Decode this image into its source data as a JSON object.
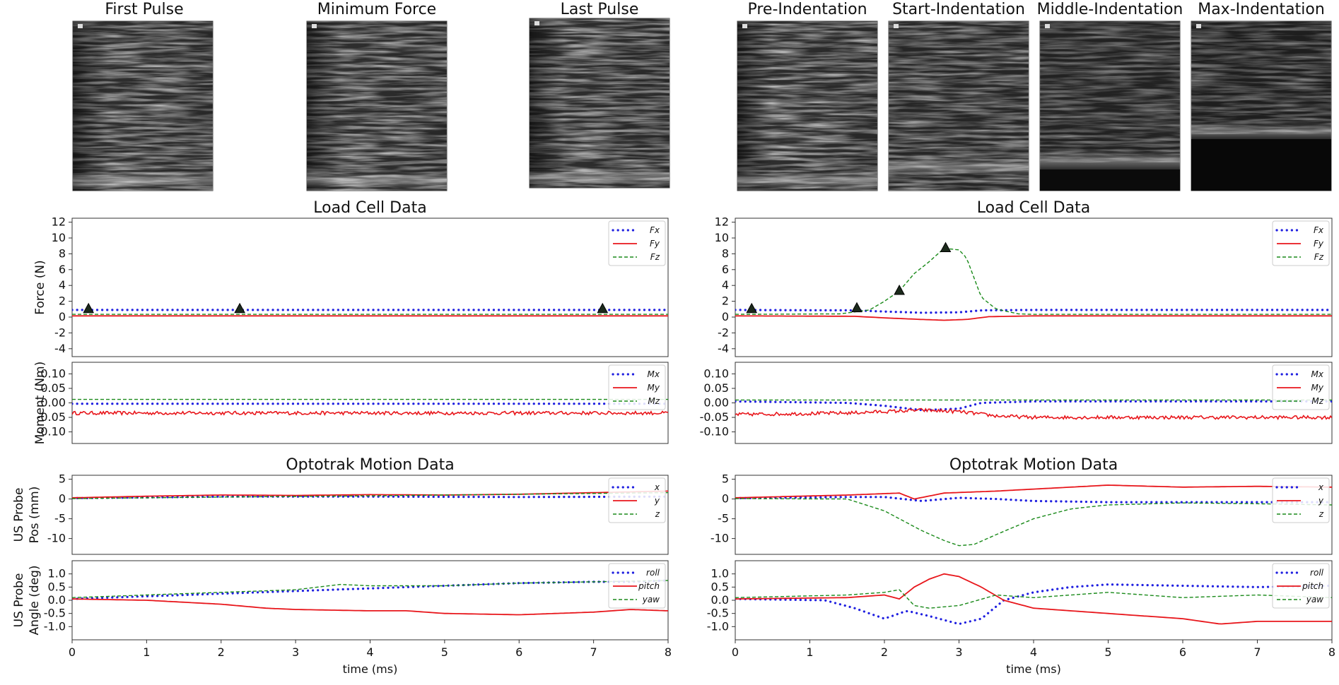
{
  "image_titles": [
    "First Pulse",
    "Minimum Force",
    "Last Pulse",
    "Pre-Indentation",
    "Start-Indentation",
    "Middle-Indentation",
    "Max-Indentation"
  ],
  "colors": {
    "x": "#1f1fe0",
    "y": "#e8161b",
    "z": "#1a8a1a",
    "axes": "#333333"
  },
  "chart_data": [
    {
      "type": "line",
      "panel": "left-force",
      "title": "Load Cell Data",
      "ylabel": "Force (N)",
      "xlim": [
        0,
        8
      ],
      "ylim": [
        -5,
        12.5
      ],
      "yticks": [
        12,
        10,
        8,
        6,
        4,
        2,
        0,
        -2,
        -4
      ],
      "series": [
        {
          "name": "Fx",
          "style": "dotted",
          "x": [
            0,
            8
          ],
          "y": [
            0.9,
            0.9
          ]
        },
        {
          "name": "Fy",
          "style": "solid",
          "x": [
            0,
            8
          ],
          "y": [
            0.15,
            0.15
          ]
        },
        {
          "name": "Fz",
          "style": "dashed",
          "x": [
            0,
            8
          ],
          "y": [
            0.35,
            0.35
          ]
        }
      ],
      "markers": [
        {
          "x": 0.22,
          "y": 1.0
        },
        {
          "x": 2.25,
          "y": 1.0
        },
        {
          "x": 7.12,
          "y": 1.0
        }
      ]
    },
    {
      "type": "line",
      "panel": "left-moment",
      "title": "",
      "ylabel": "Moment (Nm)",
      "xlim": [
        0,
        8
      ],
      "ylim": [
        -0.14,
        0.14
      ],
      "yticks": [
        "0.10",
        "0.05",
        "0.00",
        "-0.05",
        "-0.10"
      ],
      "series": [
        {
          "name": "Mx",
          "style": "dotted",
          "x": [
            0,
            8
          ],
          "y": [
            -0.003,
            -0.003
          ]
        },
        {
          "name": "My",
          "style": "solid-noisy",
          "x": [
            0,
            8
          ],
          "y": [
            -0.035,
            -0.035
          ]
        },
        {
          "name": "Mz",
          "style": "dashed",
          "x": [
            0,
            8
          ],
          "y": [
            0.012,
            0.012
          ]
        }
      ]
    },
    {
      "type": "line",
      "panel": "left-pos",
      "title": "Optotrak Motion Data",
      "ylabel": [
        "US Probe",
        "Pos (mm)"
      ],
      "xlim": [
        0,
        8
      ],
      "ylim": [
        -14,
        6
      ],
      "yticks": [
        5,
        0,
        -5,
        -10
      ],
      "series": [
        {
          "name": "x",
          "style": "dotted",
          "x": [
            0,
            2,
            4,
            6,
            8
          ],
          "y": [
            0.2,
            0.6,
            0.6,
            0.5,
            0.6
          ]
        },
        {
          "name": "y",
          "style": "solid",
          "x": [
            0,
            1,
            2,
            3,
            4,
            5,
            6,
            7,
            8
          ],
          "y": [
            0.3,
            0.7,
            1.0,
            0.9,
            1.1,
            1.0,
            1.2,
            1.6,
            2.0
          ]
        },
        {
          "name": "z",
          "style": "dashed",
          "x": [
            0,
            2,
            4,
            6,
            8
          ],
          "y": [
            0.1,
            0.5,
            0.8,
            1.2,
            1.6
          ]
        }
      ]
    },
    {
      "type": "line",
      "panel": "left-angle",
      "title": "",
      "ylabel": [
        "US Probe",
        "Angle (deg)"
      ],
      "xlim": [
        0,
        8
      ],
      "ylim": [
        -1.5,
        1.5
      ],
      "yticks": [
        "1.0",
        "0.5",
        "0.0",
        "-0.5",
        "-1.0"
      ],
      "xlabel": "time (ms)",
      "xticks": [
        0,
        1,
        2,
        3,
        4,
        5,
        6,
        7,
        8
      ],
      "series": [
        {
          "name": "roll",
          "style": "dotted",
          "x": [
            0,
            1,
            2,
            3,
            4,
            5,
            6,
            7,
            7.5,
            8
          ],
          "y": [
            0.05,
            0.15,
            0.25,
            0.35,
            0.45,
            0.55,
            0.65,
            0.7,
            0.7,
            0.75
          ]
        },
        {
          "name": "pitch",
          "style": "solid",
          "x": [
            0,
            1,
            2,
            2.6,
            3,
            4,
            4.5,
            5,
            6,
            7,
            7.5,
            8
          ],
          "y": [
            0.05,
            0.0,
            -0.15,
            -0.3,
            -0.35,
            -0.4,
            -0.4,
            -0.5,
            -0.55,
            -0.45,
            -0.35,
            -0.4
          ]
        },
        {
          "name": "yaw",
          "style": "dashed",
          "x": [
            0,
            1,
            2,
            3,
            3.6,
            4,
            5,
            6,
            7,
            8
          ],
          "y": [
            0.1,
            0.2,
            0.3,
            0.4,
            0.6,
            0.55,
            0.55,
            0.65,
            0.7,
            0.75
          ]
        }
      ]
    },
    {
      "type": "line",
      "panel": "right-force",
      "title": "Load Cell Data",
      "ylabel": "",
      "xlim": [
        0,
        8
      ],
      "ylim": [
        -5,
        12.5
      ],
      "yticks": [
        12,
        10,
        8,
        6,
        4,
        2,
        0,
        -2,
        -4
      ],
      "series": [
        {
          "name": "Fx",
          "style": "dotted",
          "x": [
            0,
            1.6,
            2.0,
            2.5,
            3.0,
            3.3,
            4.0,
            8
          ],
          "y": [
            0.9,
            0.85,
            0.7,
            0.55,
            0.6,
            0.85,
            0.9,
            0.9
          ]
        },
        {
          "name": "Fy",
          "style": "solid",
          "x": [
            0,
            1.6,
            2.0,
            2.5,
            2.8,
            3.1,
            3.4,
            4.0,
            8
          ],
          "y": [
            0.15,
            0.1,
            -0.1,
            -0.3,
            -0.4,
            -0.3,
            0.05,
            0.15,
            0.15
          ]
        },
        {
          "name": "Fz",
          "style": "dashed",
          "x": [
            0,
            1.4,
            1.8,
            2.0,
            2.2,
            2.4,
            2.6,
            2.8,
            3.0,
            3.1,
            3.2,
            3.3,
            3.5,
            3.8,
            4.0,
            8
          ],
          "y": [
            0.35,
            0.4,
            0.9,
            2.0,
            3.3,
            5.5,
            7.0,
            8.7,
            8.5,
            7.5,
            5.0,
            2.5,
            1.0,
            0.4,
            0.35,
            0.35
          ]
        }
      ],
      "markers": [
        {
          "x": 0.22,
          "y": 1.0
        },
        {
          "x": 1.63,
          "y": 1.1
        },
        {
          "x": 2.2,
          "y": 3.3
        },
        {
          "x": 2.82,
          "y": 8.7
        }
      ]
    },
    {
      "type": "line",
      "panel": "right-moment",
      "title": "",
      "ylabel": "",
      "xlim": [
        0,
        8
      ],
      "ylim": [
        -0.14,
        0.14
      ],
      "yticks": [
        "0.10",
        "0.05",
        "0.00",
        "-0.05",
        "-0.10"
      ],
      "series": [
        {
          "name": "Mx",
          "style": "dotted",
          "x": [
            0,
            1.5,
            2.0,
            2.5,
            3.0,
            3.3,
            4.0,
            8
          ],
          "y": [
            0.005,
            0.0,
            -0.01,
            -0.025,
            -0.02,
            0.0,
            0.005,
            0.005
          ]
        },
        {
          "name": "My",
          "style": "solid-noisy",
          "x": [
            0,
            1.5,
            2.5,
            3.0,
            3.5,
            4.0,
            8
          ],
          "y": [
            -0.04,
            -0.035,
            -0.025,
            -0.03,
            -0.045,
            -0.05,
            -0.05
          ]
        },
        {
          "name": "Mz",
          "style": "dashed",
          "x": [
            0,
            8
          ],
          "y": [
            0.01,
            0.01
          ]
        }
      ]
    },
    {
      "type": "line",
      "panel": "right-pos",
      "title": "Optotrak Motion Data",
      "ylabel": "",
      "xlim": [
        0,
        8
      ],
      "ylim": [
        -14,
        6
      ],
      "yticks": [
        5,
        0,
        -5,
        -10
      ],
      "series": [
        {
          "name": "x",
          "style": "dotted",
          "x": [
            0,
            1.5,
            2.0,
            2.5,
            3.0,
            3.5,
            4.0,
            5.0,
            6.0,
            8
          ],
          "y": [
            0.2,
            0.5,
            0.5,
            -0.5,
            0.3,
            0.0,
            -0.5,
            -0.8,
            -0.8,
            -0.8
          ]
        },
        {
          "name": "y",
          "style": "solid",
          "x": [
            0,
            1.5,
            2.2,
            2.4,
            2.8,
            3.5,
            4.0,
            5.0,
            6.0,
            7.0,
            8
          ],
          "y": [
            0.3,
            1.0,
            1.5,
            0.0,
            1.5,
            2.0,
            2.5,
            3.5,
            3.0,
            3.2,
            3.0
          ]
        },
        {
          "name": "z",
          "style": "dashed",
          "x": [
            0,
            1.5,
            2.0,
            2.5,
            2.8,
            3.0,
            3.2,
            3.5,
            4.0,
            4.5,
            5.0,
            6.0,
            7.0,
            8
          ],
          "y": [
            0.1,
            0.0,
            -3.0,
            -8.0,
            -10.5,
            -11.8,
            -11.5,
            -9.0,
            -5.0,
            -2.5,
            -1.5,
            -1.0,
            -1.2,
            -1.5
          ]
        }
      ]
    },
    {
      "type": "line",
      "panel": "right-angle",
      "title": "",
      "ylabel": "",
      "xlim": [
        0,
        8
      ],
      "ylim": [
        -1.5,
        1.5
      ],
      "yticks": [
        "1.0",
        "0.5",
        "0.0",
        "-0.5",
        "-1.0"
      ],
      "xlabel": "time (ms)",
      "xticks": [
        0,
        1,
        2,
        3,
        4,
        5,
        6,
        7,
        8
      ],
      "series": [
        {
          "name": "roll",
          "style": "dotted",
          "x": [
            0,
            1.2,
            1.6,
            2.0,
            2.3,
            2.6,
            3.0,
            3.3,
            3.6,
            4.0,
            4.5,
            5.0,
            6.0,
            7.0,
            8
          ],
          "y": [
            0.05,
            0.0,
            -0.3,
            -0.7,
            -0.4,
            -0.6,
            -0.9,
            -0.7,
            0.0,
            0.3,
            0.5,
            0.6,
            0.55,
            0.5,
            0.55
          ]
        },
        {
          "name": "pitch",
          "style": "solid",
          "x": [
            0,
            1.5,
            2.0,
            2.2,
            2.4,
            2.6,
            2.8,
            3.0,
            3.3,
            3.6,
            4.0,
            5.0,
            6.0,
            6.5,
            7.0,
            8
          ],
          "y": [
            0.05,
            0.1,
            0.2,
            0.05,
            0.5,
            0.8,
            1.0,
            0.9,
            0.5,
            0.0,
            -0.3,
            -0.5,
            -0.7,
            -0.9,
            -0.8,
            -0.8
          ]
        },
        {
          "name": "yaw",
          "style": "dashed",
          "x": [
            0,
            1.5,
            2.0,
            2.2,
            2.4,
            2.6,
            3.0,
            3.5,
            4.0,
            5.0,
            6.0,
            7.0,
            8
          ],
          "y": [
            0.1,
            0.2,
            0.3,
            0.4,
            -0.2,
            -0.3,
            -0.2,
            0.2,
            0.1,
            0.3,
            0.1,
            0.2,
            0.1
          ]
        }
      ]
    }
  ]
}
